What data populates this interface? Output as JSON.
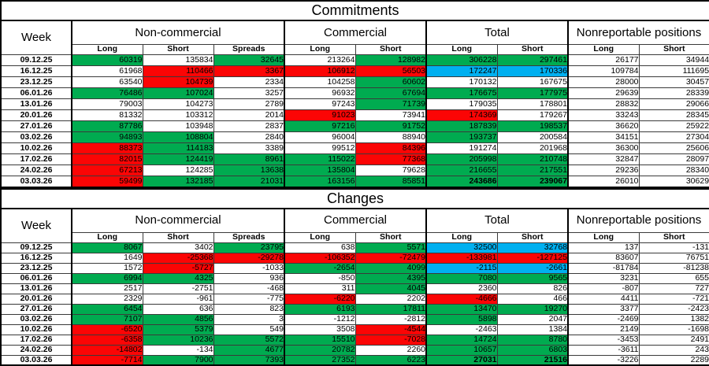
{
  "colors": {
    "g": "#00ab50",
    "r": "#fb0505",
    "b": "#00b0f0",
    "w": "#ffffff"
  },
  "tables": [
    {
      "title": "Commitments",
      "week_header": "Week",
      "groups": [
        {
          "label": "Non-commercial",
          "cols": [
            "Long",
            "Short",
            "Spreads"
          ]
        },
        {
          "label": "Commercial",
          "cols": [
            "Long",
            "Short"
          ]
        },
        {
          "label": "Total",
          "cols": [
            "Long",
            "Short"
          ]
        },
        {
          "label": "Nonreportable positions",
          "cols": [
            "Long",
            "Short"
          ]
        }
      ],
      "rows": [
        {
          "week": "09.12.25",
          "cells": [
            [
              "60319",
              "g"
            ],
            [
              "135834",
              "w"
            ],
            [
              "32645",
              "g"
            ],
            [
              "213264",
              "w"
            ],
            [
              "128982",
              "g"
            ],
            [
              "306228",
              "g"
            ],
            [
              "297461",
              "g"
            ],
            [
              "26177",
              "w"
            ],
            [
              "34944",
              "w"
            ]
          ]
        },
        {
          "week": "16.12.25",
          "cells": [
            [
              "61968",
              "w"
            ],
            [
              "110466",
              "r"
            ],
            [
              "3367",
              "r"
            ],
            [
              "106912",
              "r"
            ],
            [
              "56503",
              "r"
            ],
            [
              "172247",
              "b"
            ],
            [
              "170336",
              "b"
            ],
            [
              "109784",
              "w"
            ],
            [
              "111695",
              "w"
            ]
          ]
        },
        {
          "week": "23.12.25",
          "cells": [
            [
              "63540",
              "w"
            ],
            [
              "104739",
              "r"
            ],
            [
              "2334",
              "w"
            ],
            [
              "104258",
              "w"
            ],
            [
              "60602",
              "g"
            ],
            [
              "170132",
              "w"
            ],
            [
              "167675",
              "w"
            ],
            [
              "28000",
              "w"
            ],
            [
              "30457",
              "w"
            ]
          ]
        },
        {
          "week": "06.01.26",
          "cells": [
            [
              "76486",
              "g"
            ],
            [
              "107024",
              "g"
            ],
            [
              "3257",
              "w"
            ],
            [
              "96932",
              "w"
            ],
            [
              "67694",
              "g"
            ],
            [
              "176675",
              "g"
            ],
            [
              "177975",
              "g"
            ],
            [
              "29639",
              "w"
            ],
            [
              "28339",
              "w"
            ]
          ]
        },
        {
          "week": "13.01.26",
          "cells": [
            [
              "79003",
              "w"
            ],
            [
              "104273",
              "w"
            ],
            [
              "2789",
              "w"
            ],
            [
              "97243",
              "w"
            ],
            [
              "71739",
              "g"
            ],
            [
              "179035",
              "w"
            ],
            [
              "178801",
              "w"
            ],
            [
              "28832",
              "w"
            ],
            [
              "29066",
              "w"
            ]
          ]
        },
        {
          "week": "20.01.26",
          "cells": [
            [
              "81332",
              "w"
            ],
            [
              "103312",
              "w"
            ],
            [
              "2014",
              "w"
            ],
            [
              "91023",
              "r"
            ],
            [
              "73941",
              "w"
            ],
            [
              "174369",
              "r"
            ],
            [
              "179267",
              "w"
            ],
            [
              "33243",
              "w"
            ],
            [
              "28345",
              "w"
            ]
          ]
        },
        {
          "week": "27.01.26",
          "cells": [
            [
              "87786",
              "g"
            ],
            [
              "103948",
              "w"
            ],
            [
              "2837",
              "w"
            ],
            [
              "97216",
              "g"
            ],
            [
              "91752",
              "g"
            ],
            [
              "187839",
              "g"
            ],
            [
              "198537",
              "g"
            ],
            [
              "36620",
              "w"
            ],
            [
              "25922",
              "w"
            ]
          ]
        },
        {
          "week": "03.02.26",
          "cells": [
            [
              "94893",
              "g"
            ],
            [
              "108804",
              "g"
            ],
            [
              "2840",
              "w"
            ],
            [
              "96004",
              "w"
            ],
            [
              "88940",
              "w"
            ],
            [
              "193737",
              "g"
            ],
            [
              "200584",
              "w"
            ],
            [
              "34151",
              "w"
            ],
            [
              "27304",
              "w"
            ]
          ]
        },
        {
          "week": "10.02.26",
          "cells": [
            [
              "88373",
              "r"
            ],
            [
              "114183",
              "g"
            ],
            [
              "3389",
              "w"
            ],
            [
              "99512",
              "w"
            ],
            [
              "84396",
              "r"
            ],
            [
              "191274",
              "w"
            ],
            [
              "201968",
              "w"
            ],
            [
              "36300",
              "w"
            ],
            [
              "25606",
              "w"
            ]
          ]
        },
        {
          "week": "17.02.26",
          "cells": [
            [
              "82015",
              "r"
            ],
            [
              "124419",
              "g"
            ],
            [
              "8961",
              "g"
            ],
            [
              "115022",
              "g"
            ],
            [
              "77368",
              "r"
            ],
            [
              "205998",
              "g"
            ],
            [
              "210748",
              "g"
            ],
            [
              "32847",
              "w"
            ],
            [
              "28097",
              "w"
            ]
          ]
        },
        {
          "week": "24.02.26",
          "cells": [
            [
              "67213",
              "r"
            ],
            [
              "124285",
              "w"
            ],
            [
              "13638",
              "g"
            ],
            [
              "135804",
              "g"
            ],
            [
              "79628",
              "w"
            ],
            [
              "216655",
              "g"
            ],
            [
              "217551",
              "g"
            ],
            [
              "29236",
              "w"
            ],
            [
              "28340",
              "w"
            ]
          ]
        },
        {
          "week": "03.03.26",
          "cells": [
            [
              "59499",
              "r"
            ],
            [
              "132185",
              "g"
            ],
            [
              "21031",
              "g"
            ],
            [
              "163156",
              "g"
            ],
            [
              "85851",
              "g"
            ],
            [
              "243686",
              "g",
              "b"
            ],
            [
              "239067",
              "g",
              "b"
            ],
            [
              "26010",
              "w"
            ],
            [
              "30629",
              "w"
            ]
          ]
        }
      ]
    },
    {
      "title": "Changes",
      "week_header": "Week",
      "groups": [
        {
          "label": "Non-commercial",
          "cols": [
            "Long",
            "Short",
            "Spreads"
          ]
        },
        {
          "label": "Commercial",
          "cols": [
            "Long",
            "Short"
          ]
        },
        {
          "label": "Total",
          "cols": [
            "Long",
            "Short"
          ]
        },
        {
          "label": "Nonreportable positions",
          "cols": [
            "Long",
            "Short"
          ]
        }
      ],
      "rows": [
        {
          "week": "09.12.25",
          "cells": [
            [
              "8067",
              "g"
            ],
            [
              "3402",
              "w"
            ],
            [
              "23795",
              "g"
            ],
            [
              "638",
              "w"
            ],
            [
              "5571",
              "g"
            ],
            [
              "32500",
              "b"
            ],
            [
              "32768",
              "b"
            ],
            [
              "137",
              "w"
            ],
            [
              "-131",
              "w"
            ]
          ]
        },
        {
          "week": "16.12.25",
          "cells": [
            [
              "1649",
              "w"
            ],
            [
              "-25368",
              "r"
            ],
            [
              "-29278",
              "r"
            ],
            [
              "-106352",
              "r"
            ],
            [
              "-72479",
              "r"
            ],
            [
              "-133981",
              "r"
            ],
            [
              "-127125",
              "r"
            ],
            [
              "83607",
              "w"
            ],
            [
              "76751",
              "w"
            ]
          ]
        },
        {
          "week": "23.12.25",
          "cells": [
            [
              "1572",
              "w"
            ],
            [
              "-5727",
              "r"
            ],
            [
              "-1033",
              "w"
            ],
            [
              "-2654",
              "g"
            ],
            [
              "4099",
              "g"
            ],
            [
              "-2115",
              "b"
            ],
            [
              "-2661",
              "b"
            ],
            [
              "-81784",
              "w"
            ],
            [
              "-81238",
              "w"
            ]
          ]
        },
        {
          "week": "06.01.26",
          "cells": [
            [
              "6994",
              "g"
            ],
            [
              "4325",
              "g"
            ],
            [
              "936",
              "w"
            ],
            [
              "-850",
              "w"
            ],
            [
              "4395",
              "g"
            ],
            [
              "7080",
              "g"
            ],
            [
              "9565",
              "g"
            ],
            [
              "3231",
              "w"
            ],
            [
              "655",
              "w"
            ]
          ]
        },
        {
          "week": "13.01.26",
          "cells": [
            [
              "2517",
              "w"
            ],
            [
              "-2751",
              "w"
            ],
            [
              "-468",
              "w"
            ],
            [
              "311",
              "w"
            ],
            [
              "4045",
              "g"
            ],
            [
              "2360",
              "w"
            ],
            [
              "826",
              "w"
            ],
            [
              "-807",
              "w"
            ],
            [
              "727",
              "w"
            ]
          ]
        },
        {
          "week": "20.01.26",
          "cells": [
            [
              "2329",
              "w"
            ],
            [
              "-961",
              "w"
            ],
            [
              "-775",
              "w"
            ],
            [
              "-6220",
              "r"
            ],
            [
              "2202",
              "w"
            ],
            [
              "-4666",
              "r"
            ],
            [
              "466",
              "w"
            ],
            [
              "4411",
              "w"
            ],
            [
              "-721",
              "w"
            ]
          ]
        },
        {
          "week": "27.01.26",
          "cells": [
            [
              "6454",
              "g"
            ],
            [
              "636",
              "w"
            ],
            [
              "823",
              "w"
            ],
            [
              "6193",
              "g"
            ],
            [
              "17811",
              "g"
            ],
            [
              "13470",
              "g"
            ],
            [
              "19270",
              "g"
            ],
            [
              "3377",
              "w"
            ],
            [
              "-2423",
              "w"
            ]
          ]
        },
        {
          "week": "03.02.26",
          "cells": [
            [
              "7107",
              "g"
            ],
            [
              "4856",
              "g"
            ],
            [
              "3",
              "w"
            ],
            [
              "-1212",
              "w"
            ],
            [
              "-2812",
              "w"
            ],
            [
              "5898",
              "g"
            ],
            [
              "2047",
              "w"
            ],
            [
              "-2469",
              "w"
            ],
            [
              "1382",
              "w"
            ]
          ]
        },
        {
          "week": "10.02.26",
          "cells": [
            [
              "-6520",
              "r"
            ],
            [
              "5379",
              "g"
            ],
            [
              "549",
              "w"
            ],
            [
              "3508",
              "w"
            ],
            [
              "-4544",
              "r"
            ],
            [
              "-2463",
              "w"
            ],
            [
              "1384",
              "w"
            ],
            [
              "2149",
              "w"
            ],
            [
              "-1698",
              "w"
            ]
          ]
        },
        {
          "week": "17.02.26",
          "cells": [
            [
              "-6358",
              "r"
            ],
            [
              "10236",
              "g"
            ],
            [
              "5572",
              "g"
            ],
            [
              "15510",
              "g"
            ],
            [
              "-7028",
              "r"
            ],
            [
              "14724",
              "g"
            ],
            [
              "8780",
              "g"
            ],
            [
              "-3453",
              "w"
            ],
            [
              "2491",
              "w"
            ]
          ]
        },
        {
          "week": "24.02.26",
          "cells": [
            [
              "-14802",
              "r"
            ],
            [
              "-134",
              "w"
            ],
            [
              "4677",
              "g"
            ],
            [
              "20782",
              "g"
            ],
            [
              "2260",
              "w"
            ],
            [
              "10657",
              "g"
            ],
            [
              "6803",
              "g"
            ],
            [
              "-3611",
              "w"
            ],
            [
              "243",
              "w"
            ]
          ]
        },
        {
          "week": "03.03.26",
          "cells": [
            [
              "-7714",
              "r"
            ],
            [
              "7900",
              "g"
            ],
            [
              "7393",
              "g"
            ],
            [
              "27352",
              "g"
            ],
            [
              "6223",
              "g"
            ],
            [
              "27031",
              "g",
              "b"
            ],
            [
              "21516",
              "g",
              "b"
            ],
            [
              "-3226",
              "w"
            ],
            [
              "2289",
              "w"
            ]
          ]
        }
      ]
    }
  ]
}
